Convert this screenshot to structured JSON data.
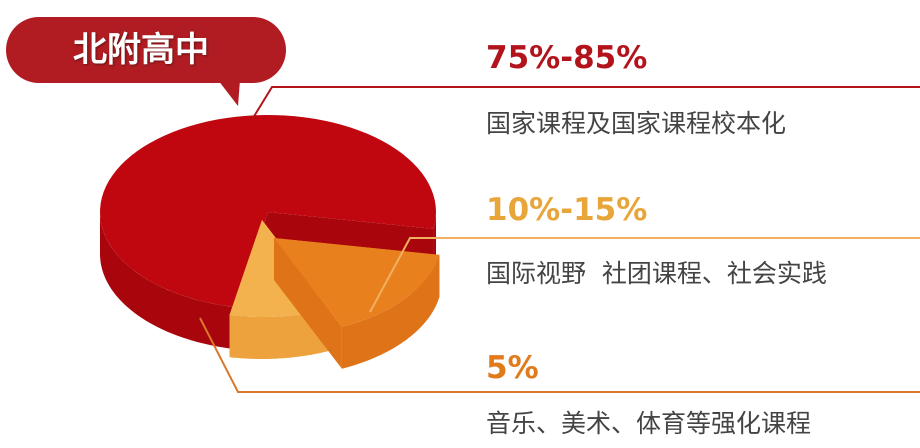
{
  "title": "北附高中",
  "colors": {
    "red": "#c0070f",
    "orange": "#e8801e",
    "light": "#f3b24e",
    "label_red": "#b3141c",
    "label_orange": "#e8a53a",
    "label_5": "#e07a1a"
  },
  "chart_data": {
    "type": "pie",
    "title": "北附高中",
    "slices": [
      {
        "label": "75%-85%",
        "description": "国家课程及国家课程校本化",
        "range": [
          75,
          85
        ]
      },
      {
        "label": "10%-15%",
        "description": "国际视野  社团课程、社会实践",
        "range": [
          10,
          15
        ]
      },
      {
        "label": "5%",
        "description": "音乐、美术、体育等强化课程",
        "range": [
          5,
          5
        ]
      }
    ]
  }
}
